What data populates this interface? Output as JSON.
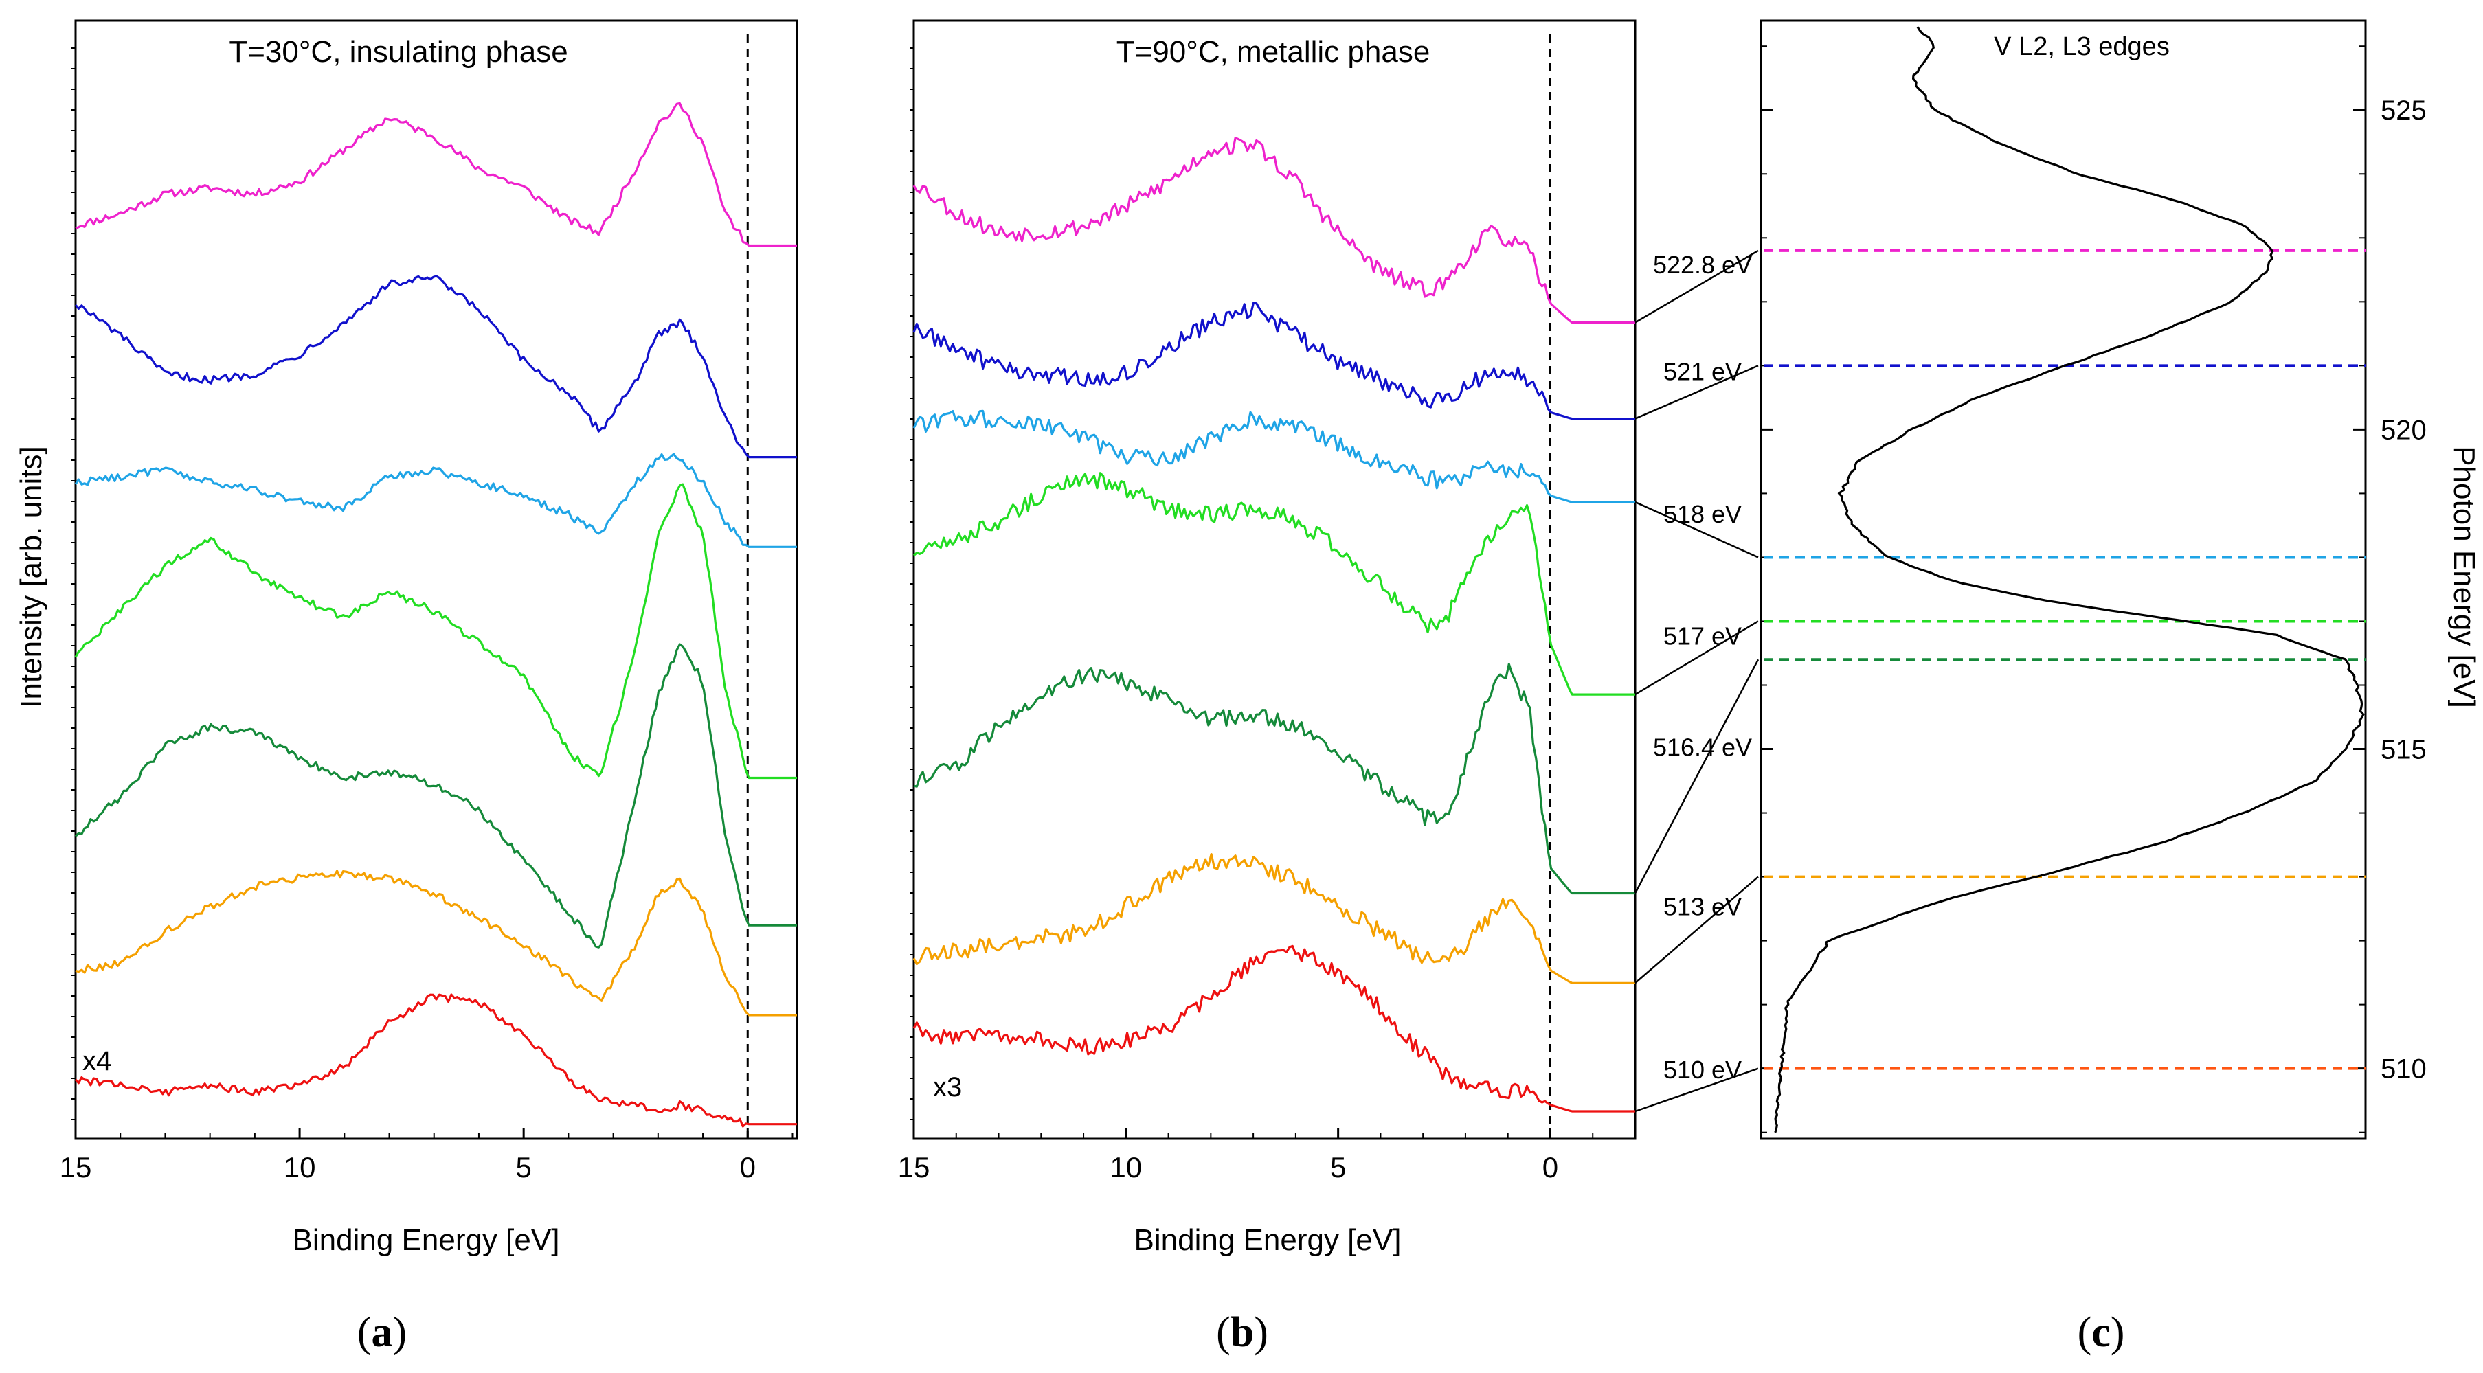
{
  "chart_data": [
    {
      "panel_label": "a",
      "type": "line",
      "title": "T=30°C, insulating phase",
      "xlabel": "Binding Energy [eV]",
      "ylabel": "Intensity [arb. units]",
      "xlim": [
        15,
        -1.1
      ],
      "x_reversed": true,
      "xticks": [
        15,
        10,
        5,
        0
      ],
      "fermi_level_ev": 0,
      "scale_annotation": "x4",
      "series": [
        {
          "name": "522.8 eV",
          "color": "#ee22cc",
          "offset": 6.9,
          "x": [
            15,
            14,
            13,
            12,
            11,
            10,
            9,
            8,
            7,
            6,
            5,
            4,
            3.3,
            2.5,
            2,
            1.5,
            1,
            0.5,
            0,
            -1.1
          ],
          "y": [
            0.0,
            0.1,
            0.25,
            0.3,
            0.25,
            0.35,
            0.6,
            0.85,
            0.7,
            0.45,
            0.3,
            0.05,
            -0.05,
            0.45,
            0.8,
            0.95,
            0.65,
            0.1,
            -0.15,
            -0.15
          ]
        },
        {
          "name": "521 eV",
          "color": "#1111cc",
          "offset": 5.55,
          "x": [
            15,
            14,
            13,
            12,
            11,
            10,
            9,
            8,
            7,
            6,
            5,
            4,
            3.3,
            2.5,
            2,
            1.5,
            1,
            0.5,
            0,
            -1.1
          ],
          "y": [
            0.75,
            0.5,
            0.2,
            0.15,
            0.2,
            0.35,
            0.6,
            0.9,
            0.95,
            0.7,
            0.3,
            0.05,
            -0.25,
            0.15,
            0.5,
            0.6,
            0.35,
            -0.15,
            -0.45,
            -0.45
          ]
        },
        {
          "name": "518 eV",
          "color": "#1fa4e6",
          "offset": 4.6,
          "x": [
            15,
            14,
            13,
            12,
            11,
            10,
            9,
            8,
            7,
            6,
            5,
            4,
            3.3,
            2.5,
            2,
            1.5,
            1,
            0.5,
            0,
            -1.1
          ],
          "y": [
            0.3,
            0.35,
            0.4,
            0.3,
            0.25,
            0.15,
            0.1,
            0.35,
            0.4,
            0.3,
            0.2,
            0.05,
            -0.1,
            0.3,
            0.5,
            0.5,
            0.3,
            0.0,
            -0.2,
            -0.2
          ]
        },
        {
          "name": "517 eV",
          "color": "#22dd22",
          "offset": 3.3,
          "x": [
            15,
            14,
            13,
            12,
            11,
            10,
            9,
            8,
            7,
            6,
            5,
            4,
            3.3,
            2.5,
            2,
            1.5,
            1,
            0.5,
            0,
            -1.1
          ],
          "y": [
            0.25,
            0.6,
            0.95,
            1.15,
            0.9,
            0.7,
            0.55,
            0.75,
            0.6,
            0.35,
            0.1,
            -0.5,
            -0.7,
            0.3,
            1.2,
            1.6,
            1.2,
            0.0,
            -0.7,
            -0.7
          ]
        },
        {
          "name": "516.4 eV",
          "color": "#158a3a",
          "offset": 1.95,
          "x": [
            15,
            14,
            13,
            12,
            11,
            10,
            9,
            8,
            7,
            6,
            5,
            4,
            3.3,
            2.5,
            2,
            1.5,
            1,
            0.5,
            0,
            -1.1
          ],
          "y": [
            0.2,
            0.5,
            0.9,
            1.05,
            1.0,
            0.8,
            0.65,
            0.7,
            0.6,
            0.4,
            0.0,
            -0.4,
            -0.7,
            0.5,
            1.3,
            1.7,
            1.4,
            0.2,
            -0.5,
            -0.5
          ]
        },
        {
          "name": "513 eV",
          "color": "#f5a000",
          "offset": 1.0,
          "x": [
            15,
            14,
            13,
            12,
            11,
            10,
            9,
            8,
            7,
            6,
            5,
            4,
            3.3,
            2.5,
            2,
            1.5,
            1,
            0.5,
            0,
            -1.1
          ],
          "y": [
            0.1,
            0.15,
            0.4,
            0.6,
            0.75,
            0.82,
            0.85,
            0.82,
            0.7,
            0.5,
            0.3,
            0.05,
            -0.15,
            0.3,
            0.7,
            0.8,
            0.55,
            0.05,
            -0.25,
            -0.25
          ]
        },
        {
          "name": "510 eV",
          "color": "#ee1111",
          "offset": 0.25,
          "x": [
            15,
            14,
            13,
            12,
            11,
            10,
            9,
            8,
            7,
            6,
            5,
            4,
            3.3,
            2.5,
            2,
            1.5,
            1,
            0.5,
            0,
            -1.1
          ],
          "y": [
            0.0,
            -0.05,
            -0.1,
            -0.05,
            -0.1,
            -0.05,
            0.1,
            0.45,
            0.65,
            0.6,
            0.35,
            0.0,
            -0.15,
            -0.2,
            -0.25,
            -0.2,
            -0.25,
            -0.3,
            -0.35,
            -0.35
          ]
        }
      ]
    },
    {
      "panel_label": "b",
      "type": "line",
      "title": "T=90°C, metallic phase",
      "xlabel": "Binding Energy [eV]",
      "xlim": [
        15,
        -2
      ],
      "x_reversed": true,
      "xticks": [
        15,
        10,
        5,
        0
      ],
      "fermi_level_ev": 0,
      "scale_annotation": "x3",
      "series": [
        {
          "name": "522.8 eV",
          "color": "#ee22cc",
          "offset": 6.75,
          "x": [
            15,
            14,
            13,
            12,
            11,
            10,
            9,
            8,
            7,
            6,
            5,
            4,
            3,
            2.5,
            2,
            1.5,
            1,
            0.5,
            0,
            -0.5,
            -2
          ],
          "y": [
            0.5,
            0.25,
            0.1,
            0.1,
            0.15,
            0.3,
            0.5,
            0.75,
            0.8,
            0.5,
            0.1,
            -0.2,
            -0.35,
            -0.3,
            -0.1,
            0.1,
            0.05,
            -0.05,
            -0.45,
            -0.6,
            -0.6
          ]
        },
        {
          "name": "521 eV",
          "color": "#1111cc",
          "offset": 5.9,
          "x": [
            15,
            14,
            13,
            12,
            11,
            10,
            9,
            8,
            7,
            6,
            5,
            4,
            3,
            2.5,
            2,
            1.5,
            1,
            0.5,
            0,
            -0.5,
            -2
          ],
          "y": [
            0.2,
            0.05,
            -0.1,
            -0.15,
            -0.2,
            -0.15,
            0.05,
            0.25,
            0.35,
            0.15,
            -0.05,
            -0.2,
            -0.35,
            -0.35,
            -0.25,
            -0.15,
            -0.1,
            -0.2,
            -0.45,
            -0.5,
            -0.5
          ]
        },
        {
          "name": "518 eV",
          "color": "#1fa4e6",
          "offset": 5.05,
          "x": [
            15,
            14,
            13,
            12,
            11,
            10,
            9,
            8,
            7,
            6,
            5,
            4,
            3,
            2.5,
            2,
            1.5,
            1,
            0.5,
            0,
            -0.5,
            -2
          ],
          "y": [
            0.3,
            0.35,
            0.35,
            0.3,
            0.2,
            0.05,
            0.05,
            0.2,
            0.35,
            0.3,
            0.15,
            0.0,
            -0.1,
            -0.15,
            -0.1,
            -0.05,
            -0.05,
            -0.05,
            -0.25,
            -0.3,
            -0.3
          ]
        },
        {
          "name": "517 eV",
          "color": "#22dd22",
          "offset": 3.85,
          "x": [
            15,
            14,
            13,
            12,
            11,
            10,
            9,
            8,
            7,
            6,
            5,
            4,
            3,
            2.5,
            2,
            1.5,
            1,
            0.5,
            0,
            -0.5,
            -2
          ],
          "y": [
            0.5,
            0.6,
            0.75,
            0.95,
            1.1,
            1.0,
            0.85,
            0.8,
            0.85,
            0.75,
            0.55,
            0.25,
            -0.05,
            -0.05,
            0.3,
            0.6,
            0.8,
            0.9,
            -0.2,
            -0.6,
            -0.6
          ]
        },
        {
          "name": "516.4 eV",
          "color": "#158a3a",
          "offset": 2.4,
          "x": [
            15,
            14,
            13,
            12,
            11,
            10,
            9,
            8,
            7,
            6,
            5,
            4,
            3,
            2.5,
            2,
            1.5,
            1,
            0.5,
            0,
            -0.5,
            -2
          ],
          "y": [
            0.15,
            0.3,
            0.6,
            0.85,
            1.0,
            0.95,
            0.8,
            0.65,
            0.7,
            0.6,
            0.4,
            0.15,
            -0.1,
            -0.15,
            0.3,
            0.8,
            1.05,
            0.75,
            -0.5,
            -0.7,
            -0.7
          ]
        },
        {
          "name": "513 eV",
          "color": "#f5a000",
          "offset": 1.2,
          "x": [
            15,
            14,
            13,
            12,
            11,
            10,
            9,
            8,
            7,
            6,
            5,
            4,
            3,
            2.5,
            2,
            1.5,
            1,
            0.5,
            0,
            -0.5,
            -2
          ],
          "y": [
            0.0,
            0.05,
            0.1,
            0.15,
            0.2,
            0.4,
            0.6,
            0.75,
            0.75,
            0.6,
            0.4,
            0.2,
            0.0,
            -0.05,
            0.1,
            0.3,
            0.45,
            0.25,
            -0.1,
            -0.2,
            -0.2
          ]
        },
        {
          "name": "510 eV",
          "color": "#ee1111",
          "offset": 0.45,
          "x": [
            15,
            14,
            13,
            12,
            11,
            10,
            9,
            8,
            7,
            6,
            5,
            4,
            3,
            2.5,
            2,
            1.5,
            1,
            0.5,
            0,
            -0.5,
            -2
          ],
          "y": [
            0.2,
            0.1,
            0.15,
            0.1,
            0.05,
            0.1,
            0.2,
            0.45,
            0.7,
            0.8,
            0.65,
            0.35,
            0.0,
            -0.15,
            -0.25,
            -0.25,
            -0.3,
            -0.3,
            -0.4,
            -0.45,
            -0.45
          ]
        }
      ]
    },
    {
      "panel_label": "c",
      "type": "line",
      "title": "V L2, L3 edges",
      "ylabel": "Photon Energy [eV]",
      "ylim": [
        508.9,
        526.4
      ],
      "yticks": [
        510,
        515,
        520,
        525
      ],
      "curve": {
        "photon_energy": [
          509,
          510,
          511,
          512,
          512.6,
          513,
          513.5,
          514,
          514.5,
          515,
          515.5,
          516,
          516.4,
          516.8,
          517,
          517.3,
          517.6,
          518,
          518.5,
          519,
          519.5,
          520,
          520.5,
          521,
          521.5,
          522,
          522.5,
          522.8,
          523.2,
          523.6,
          524,
          524.5,
          525,
          525.5,
          526,
          526.3
        ],
        "absorption": [
          0.01,
          0.02,
          0.03,
          0.1,
          0.28,
          0.45,
          0.65,
          0.8,
          0.92,
          0.97,
          1.0,
          0.99,
          0.97,
          0.85,
          0.7,
          0.48,
          0.32,
          0.2,
          0.14,
          0.12,
          0.15,
          0.24,
          0.35,
          0.5,
          0.65,
          0.78,
          0.84,
          0.85,
          0.8,
          0.68,
          0.52,
          0.38,
          0.28,
          0.24,
          0.28,
          0.25
        ]
      },
      "excitation_energies": [
        {
          "label": "522.8 eV",
          "value": 522.8,
          "color": "#ee22cc"
        },
        {
          "label": "521 eV",
          "value": 521.0,
          "color": "#1111cc"
        },
        {
          "label": "518 eV",
          "value": 518.0,
          "color": "#1fa4e6"
        },
        {
          "label": "517 eV",
          "value": 517.0,
          "color": "#22dd22"
        },
        {
          "label": "516.4 eV",
          "value": 516.4,
          "color": "#158a3a"
        },
        {
          "label": "513 eV",
          "value": 513.0,
          "color": "#f5a000"
        },
        {
          "label": "510 eV",
          "value": 510.0,
          "color": "#ff5511"
        }
      ]
    }
  ]
}
